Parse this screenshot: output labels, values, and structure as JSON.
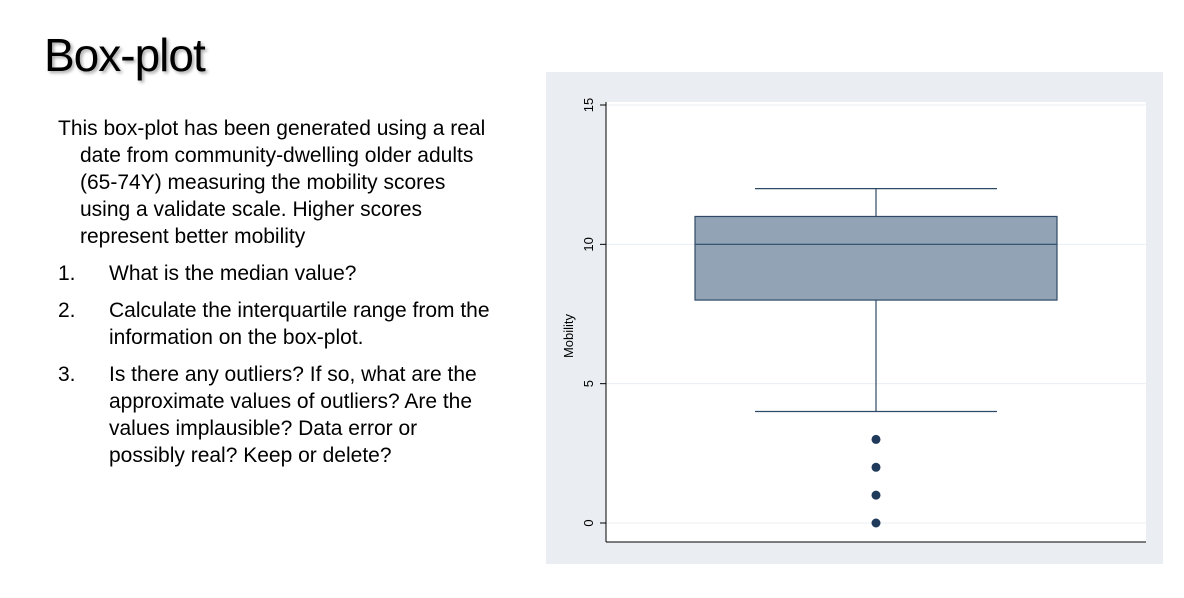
{
  "slide": {
    "title": "Box-plot",
    "intro": "This box-plot has been generated using a real date from community-dwelling older adults (65-74Y) measuring the mobility scores using a validate scale. Higher scores represent better mobility",
    "questions": [
      {
        "number": "1.",
        "text": "What is the median value?"
      },
      {
        "number": "2.",
        "text": "Calculate the interquartile range from the information on the box-plot."
      },
      {
        "number": "3.",
        "text": "Is there any outliers?  If so, what are the approximate values of outliers? Are the values implausible? Data error or possibly real? Keep or delete?"
      }
    ]
  },
  "chart_data": {
    "type": "box",
    "ylabel": "Mobility",
    "ylim": [
      0,
      15
    ],
    "yticks": [
      "0",
      "5",
      "10",
      "15"
    ],
    "grid": true,
    "box": {
      "whisker_low": 4,
      "q1": 8,
      "median": 10,
      "q3": 11,
      "whisker_high": 12
    },
    "outliers": [
      3,
      2,
      1,
      0
    ],
    "colors": {
      "box_fill": "#91a3b5",
      "box_stroke": "#2e4a66",
      "outlier": "#1f3a5a",
      "panel_bg": "#eaeef2",
      "plot_bg": "#ffffff"
    }
  }
}
